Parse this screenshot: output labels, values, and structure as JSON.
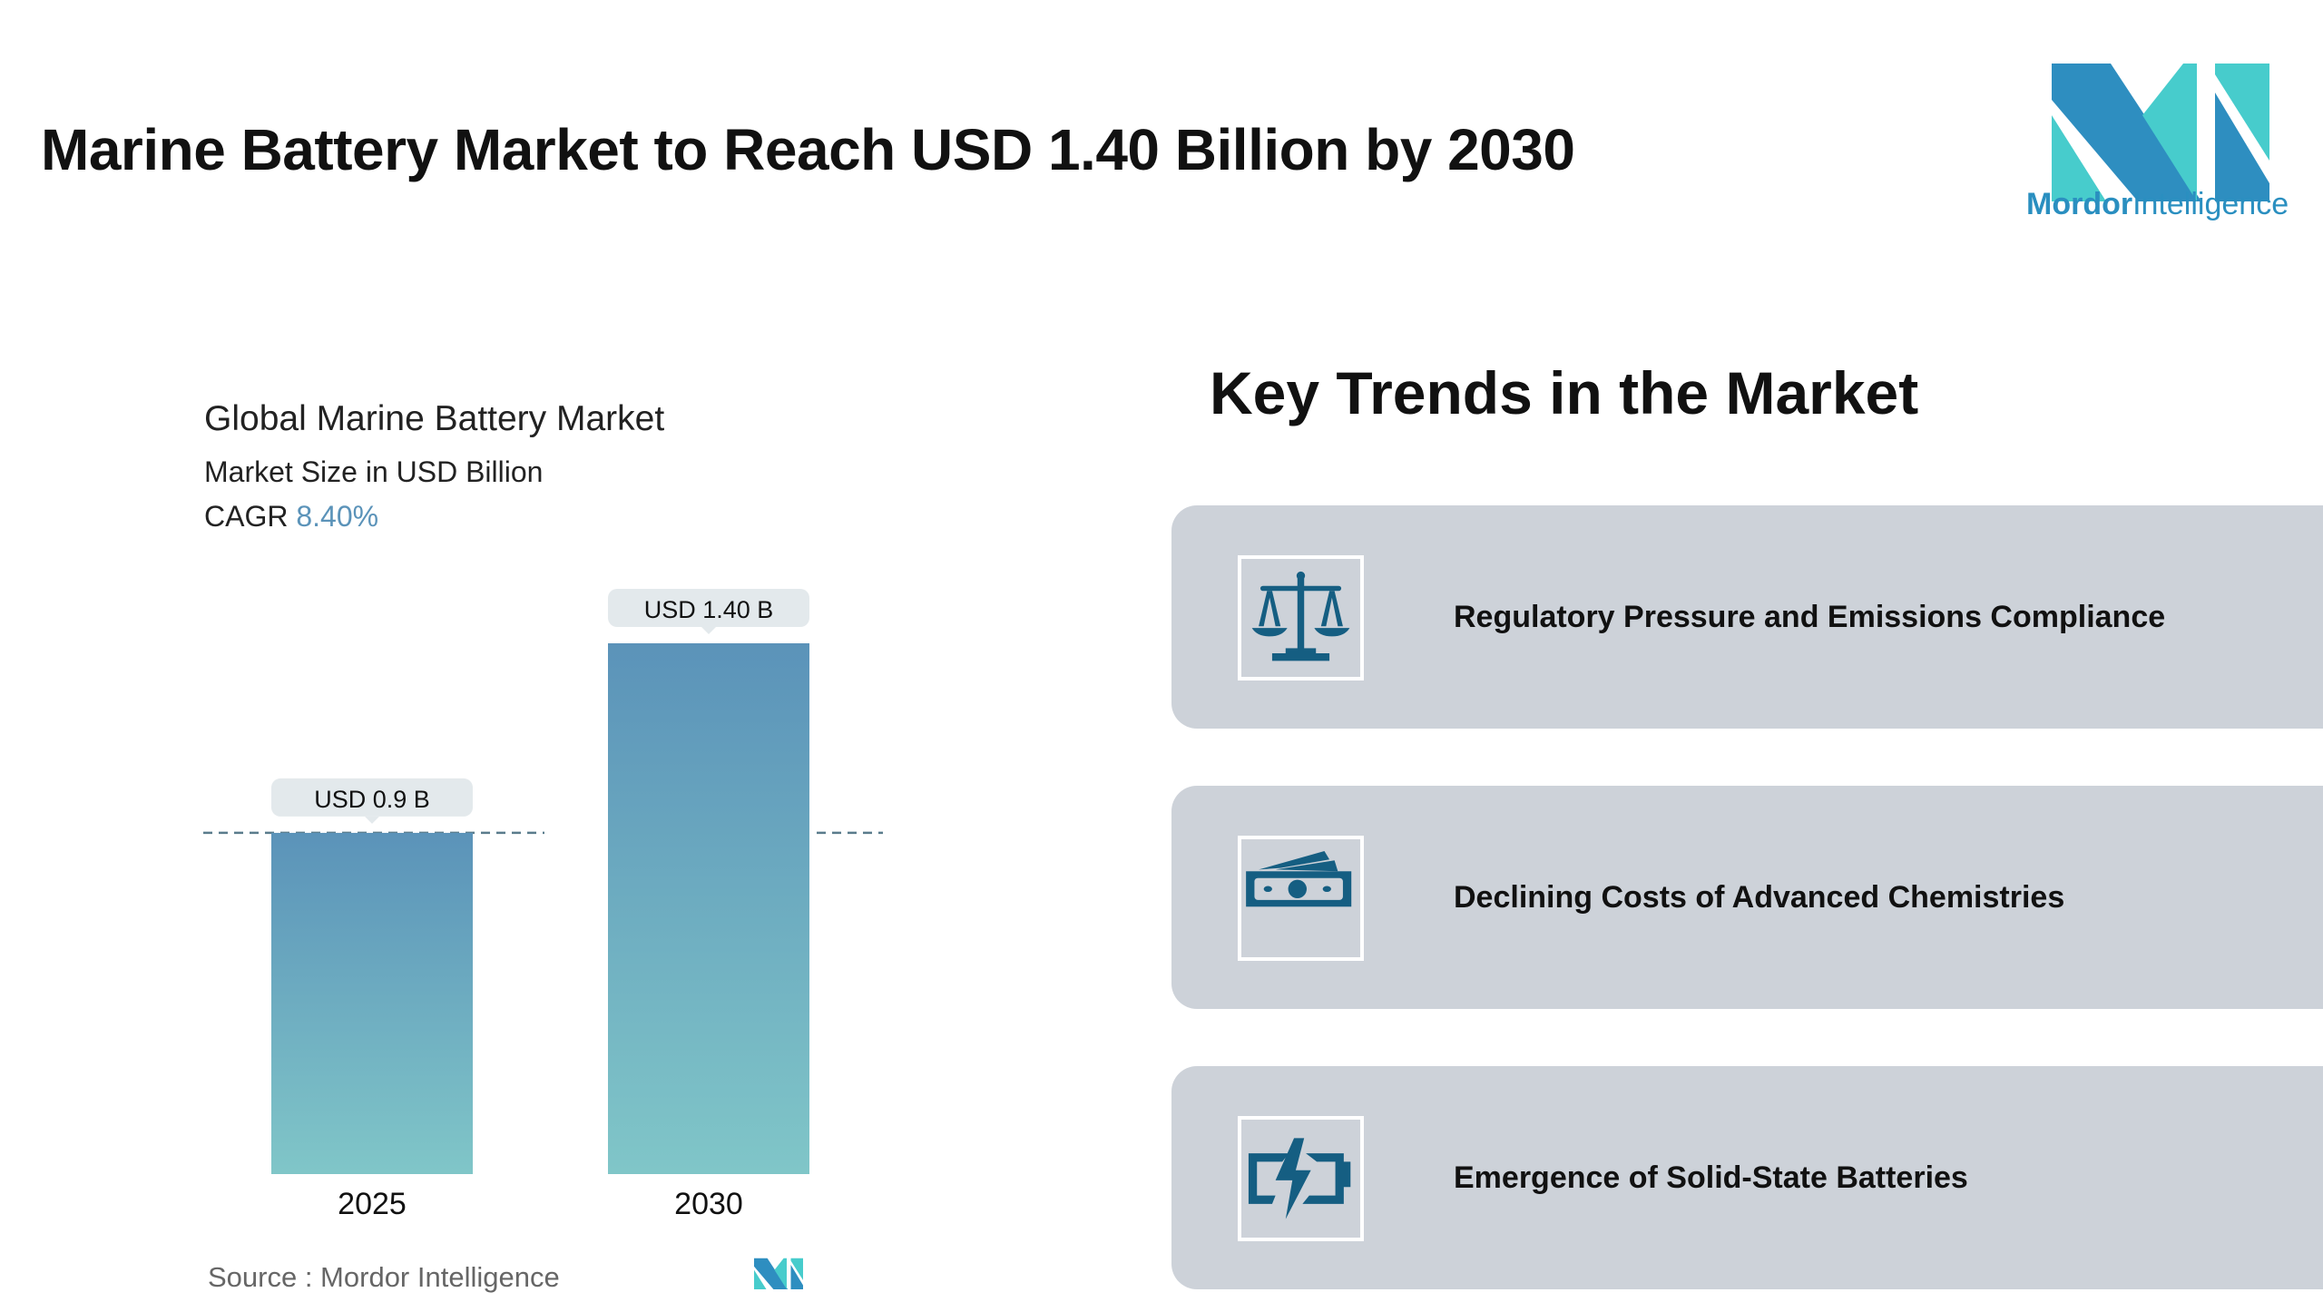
{
  "header": {
    "title": "Marine Battery Market to Reach USD 1.40 Billion by 2030"
  },
  "logo": {
    "brand_bold": "Mordor",
    "brand_light": "Intelligence",
    "colors": {
      "dark": "#2e8ec0",
      "light": "#47cccc"
    }
  },
  "chart_data": {
    "type": "bar",
    "title": "Global Marine Battery Market",
    "subtitle": "Market Size in USD Billion",
    "cagr_label": "CAGR",
    "cagr_value": "8.40%",
    "categories": [
      "2025",
      "2030"
    ],
    "values": [
      0.9,
      1.4
    ],
    "data_labels": [
      "USD 0.9 B",
      "USD 1.40 B"
    ],
    "reference_line": 0.9,
    "ylim": [
      0,
      1.4
    ],
    "colors": {
      "bar_top": "#5b93b9",
      "bar_bottom": "#80c6c8",
      "accent": "#5b93b9"
    },
    "source": "Source :  Mordor Intelligence"
  },
  "trends": {
    "title": "Key Trends in the Market",
    "items": [
      {
        "label": "Regulatory Pressure and Emissions Compliance",
        "icon": "scales-icon"
      },
      {
        "label": "Declining Costs of Advanced Chemistries",
        "icon": "money-icon"
      },
      {
        "label": "Emergence of Solid-State Batteries",
        "icon": "battery-charging-icon"
      }
    ]
  }
}
